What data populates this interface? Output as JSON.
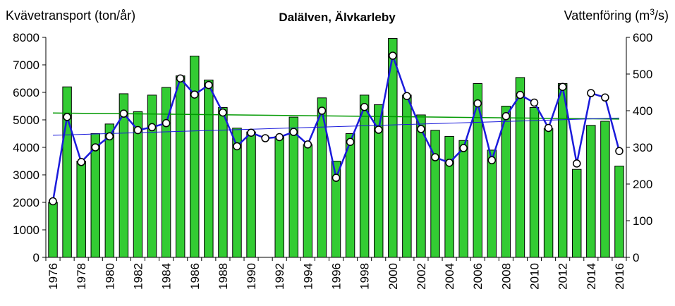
{
  "chart_data": {
    "type": "bar",
    "title": "Dalälven, Älvkarleby",
    "ylabel_left": "Kvävetransport (ton/år)",
    "ylabel_right_prefix": "Vattenföring (m",
    "ylabel_right_sup": "3",
    "ylabel_right_suffix": "/s)",
    "ylim_left": [
      0,
      8000
    ],
    "ylim_right": [
      0,
      600
    ],
    "yticks_left": [
      0,
      1000,
      2000,
      3000,
      4000,
      5000,
      6000,
      7000,
      8000
    ],
    "yticks_right": [
      0,
      100,
      200,
      300,
      400,
      500,
      600
    ],
    "xtick_labels": [
      "1976",
      "1978",
      "1980",
      "1982",
      "1984",
      "1986",
      "1988",
      "1990",
      "1992",
      "1994",
      "1996",
      "1998",
      "2000",
      "2002",
      "2004",
      "2006",
      "2008",
      "2010",
      "2012",
      "2014",
      "2016"
    ],
    "years": [
      1976,
      1977,
      1978,
      1979,
      1980,
      1981,
      1982,
      1983,
      1984,
      1985,
      1986,
      1987,
      1988,
      1989,
      1990,
      1991,
      1992,
      1993,
      1994,
      1995,
      1996,
      1997,
      1998,
      1999,
      2000,
      2001,
      2002,
      2003,
      2004,
      2005,
      2006,
      2007,
      2008,
      2009,
      2010,
      2011,
      2012,
      2013,
      2014,
      2015,
      2016
    ],
    "bars": [
      2000,
      6200,
      3500,
      4500,
      4850,
      5950,
      5300,
      5900,
      6180,
      6600,
      7320,
      6450,
      5450,
      4700,
      4560,
      null,
      4400,
      5100,
      4100,
      5800,
      3500,
      4500,
      5900,
      5550,
      7960,
      5900,
      5180,
      4620,
      4400,
      4250,
      6320,
      3900,
      5500,
      6540,
      5450,
      4680,
      6320,
      3200,
      4800,
      4950,
      3320
    ],
    "flow": [
      153,
      383,
      260,
      300,
      330,
      392,
      347,
      355,
      366,
      488,
      444,
      470,
      395,
      303,
      340,
      325,
      328,
      342,
      308,
      400,
      217,
      315,
      410,
      348,
      550,
      440,
      350,
      273,
      258,
      298,
      420,
      265,
      385,
      443,
      422,
      353,
      465,
      256,
      448,
      436,
      290
    ],
    "bar_trend": [
      5250,
      5030
    ],
    "flow_trend": [
      333,
      380
    ],
    "colors": {
      "bar_fill": "#33cc33",
      "bar_stroke": "#000000",
      "flow_line": "#1a1adb",
      "marker_fill": "#ffffff",
      "bar_trend": "#009900",
      "flow_trend": "#1a1adb"
    }
  }
}
